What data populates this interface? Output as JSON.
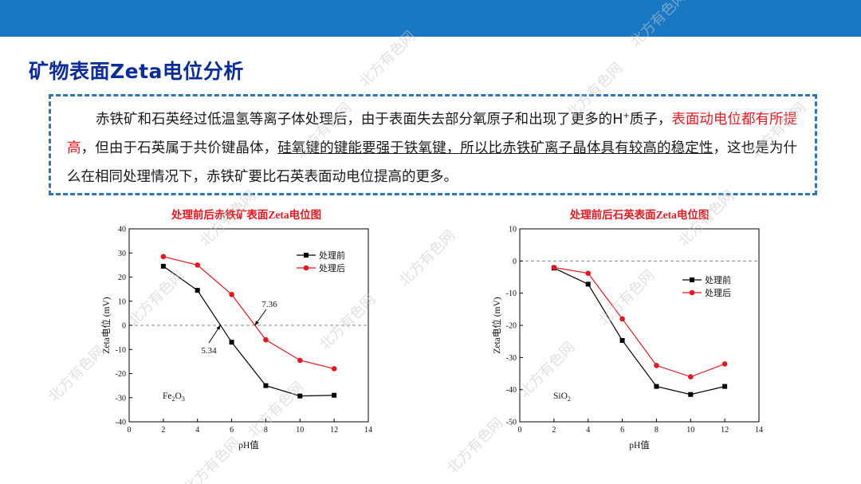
{
  "slide": {
    "title": "矿物表面Zeta电位分析",
    "para": {
      "p1": "赤铁矿和石英经过低温氢等离子体处理后，由于表面失去部分氧原子和出现了更多的H",
      "sup": "+",
      "p2": "质子，",
      "red": "表面动电位都有所提高",
      "p3": "，但由于石英属于共价键晶体，",
      "underline": "硅氧键的键能要强于铁氧键，所以比赤铁矿离子晶体具有较高的稳定性",
      "p4": "，这也是为什么在相同处理情况下，赤铁矿要比石英表面动电位提高的更多。"
    },
    "watermark": "北方有色网"
  },
  "colors": {
    "topbar": "#1878c4",
    "title": "#0b2c9a",
    "border": "#2f76b8",
    "before": "#000000",
    "after": "#e8171f"
  },
  "chart_data": [
    {
      "type": "line",
      "title": "处理前后赤铁矿表面Zeta电位图",
      "xlabel": "pH值",
      "ylabel": "Zeta电位 (mV)",
      "xlim": [
        0,
        14
      ],
      "ylim": [
        -40,
        40
      ],
      "xticks": [
        0,
        2,
        4,
        6,
        8,
        10,
        12,
        14
      ],
      "yticks": [
        -40,
        -30,
        -20,
        -10,
        0,
        10,
        20,
        30,
        40
      ],
      "legend": "top-right",
      "sample_label": "Fe2O3",
      "annotations": [
        {
          "text": "5.34",
          "x": 5.34,
          "y": 0
        },
        {
          "text": "7.36",
          "x": 7.36,
          "y": 0
        }
      ],
      "series": [
        {
          "name": "处理前",
          "color": "#000000",
          "marker": "square",
          "x": [
            2,
            4,
            6,
            8,
            10,
            12
          ],
          "y": [
            24.5,
            14.5,
            -7,
            -25,
            -29.3,
            -29
          ]
        },
        {
          "name": "处理后",
          "color": "#e8171f",
          "marker": "circle",
          "x": [
            2,
            4,
            6,
            8,
            10,
            12
          ],
          "y": [
            28.5,
            25,
            12.8,
            -6,
            -14.5,
            -18
          ]
        }
      ]
    },
    {
      "type": "line",
      "title": "处理前后石英表面Zeta电位图",
      "xlabel": "pH值",
      "ylabel": "Zeta电位 (mV)",
      "xlim": [
        0,
        14
      ],
      "ylim": [
        -50,
        10
      ],
      "xticks": [
        0,
        2,
        4,
        6,
        8,
        10,
        12,
        14
      ],
      "yticks": [
        -50,
        -40,
        -30,
        -20,
        -10,
        0,
        10
      ],
      "legend": "right",
      "sample_label": "SiO2",
      "annotations": [],
      "series": [
        {
          "name": "处理前",
          "color": "#000000",
          "marker": "square",
          "x": [
            2,
            4,
            6,
            8,
            10,
            12
          ],
          "y": [
            -2.2,
            -7.2,
            -24.7,
            -39,
            -41.5,
            -39
          ]
        },
        {
          "name": "处理后",
          "color": "#e8171f",
          "marker": "circle",
          "x": [
            2,
            4,
            6,
            8,
            10,
            12
          ],
          "y": [
            -2,
            -3.8,
            -18,
            -32.5,
            -36,
            -32
          ]
        }
      ]
    }
  ]
}
